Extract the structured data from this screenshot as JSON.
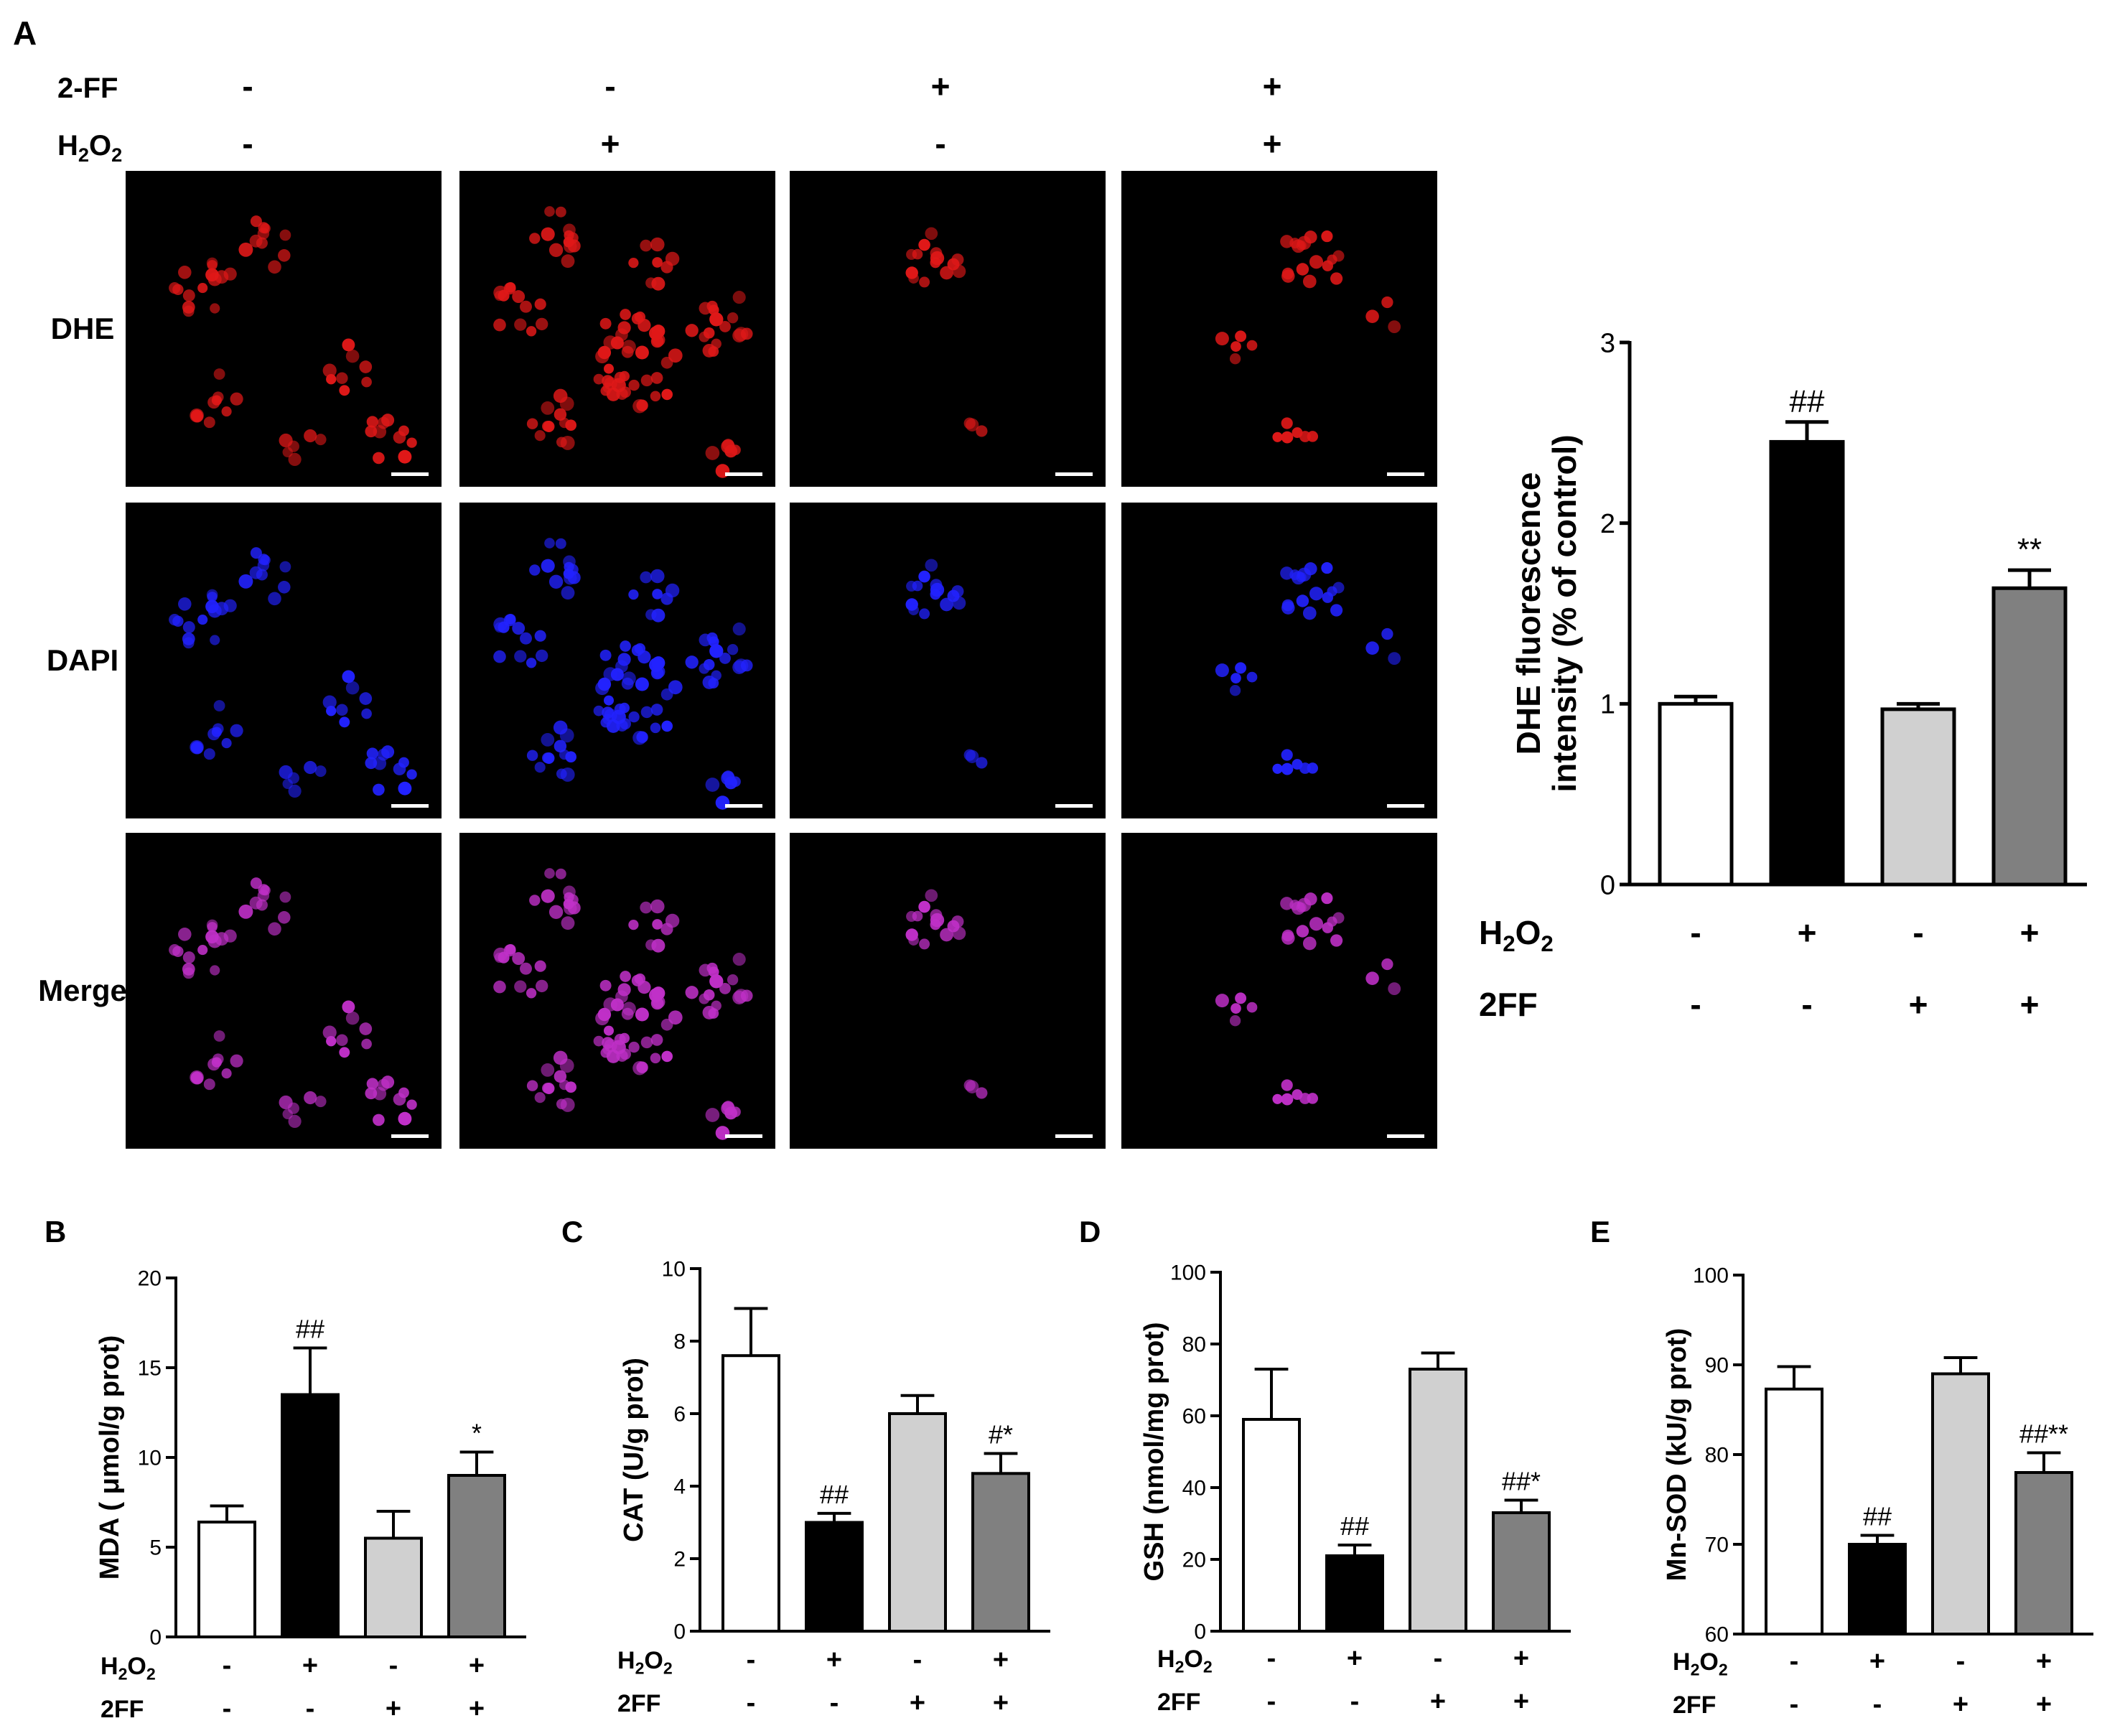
{
  "panel_a": {
    "letter": "A",
    "row_labels": [
      "DHE",
      "DAPI",
      "Merge"
    ],
    "treatment_rows": [
      {
        "label": "2-FF",
        "signs": [
          "-",
          "-",
          "+",
          "+"
        ]
      },
      {
        "label_main": "H",
        "label_sub": "2",
        "label_mid": "O",
        "label_sub2": "2",
        "signs": [
          "-",
          "+",
          "-",
          "+"
        ]
      }
    ],
    "colors": {
      "dhe": "#e01818",
      "dapi": "#2222ff",
      "merge": "#c030c8",
      "background": "#000000",
      "scale_bar": "#ffffff"
    }
  },
  "colors": {
    "bar_fills": [
      "#ffffff",
      "#000000",
      "#d0d0d0",
      "#808080"
    ],
    "axis": "#000000"
  },
  "chart_data": [
    {
      "type": "bar",
      "panel": "A",
      "letter": "",
      "ylabel_line1": "DHE fluorescence",
      "ylabel_line2": "intensity (% of control)",
      "ylim": [
        0,
        3
      ],
      "yticks": [
        0,
        1,
        2,
        3
      ],
      "values": [
        1.0,
        2.45,
        0.97,
        1.64
      ],
      "errors": [
        0.04,
        0.11,
        0.03,
        0.1
      ],
      "annotations": [
        "",
        "##",
        "",
        "**"
      ],
      "conditions": [
        {
          "label_main": "H",
          "label_sub": "2",
          "label_mid": "O",
          "label_sub2": "2",
          "signs": [
            "-",
            "+",
            "-",
            "+"
          ]
        },
        {
          "label": "2FF",
          "signs": [
            "-",
            "-",
            "+",
            "+"
          ]
        }
      ]
    },
    {
      "type": "bar",
      "panel": "B",
      "letter": "B",
      "ylabel": "MDA ( μmol/g prot)",
      "ylim": [
        0,
        20
      ],
      "yticks": [
        0,
        5,
        10,
        15,
        20
      ],
      "values": [
        6.4,
        13.5,
        5.5,
        9.0
      ],
      "errors": [
        0.9,
        2.6,
        1.5,
        1.3
      ],
      "annotations": [
        "",
        "##",
        "",
        "*"
      ],
      "conditions": [
        {
          "label_main": "H",
          "label_sub": "2",
          "label_mid": "O",
          "label_sub2": "2",
          "signs": [
            "-",
            "+",
            "-",
            "+"
          ]
        },
        {
          "label": "2FF",
          "signs": [
            "-",
            "-",
            "+",
            "+"
          ]
        }
      ]
    },
    {
      "type": "bar",
      "panel": "C",
      "letter": "C",
      "ylabel": "CAT (U/g prot)",
      "ylim": [
        0,
        10
      ],
      "yticks": [
        0,
        2,
        4,
        6,
        8,
        10
      ],
      "values": [
        7.6,
        3.0,
        6.0,
        4.35
      ],
      "errors": [
        1.3,
        0.25,
        0.5,
        0.55
      ],
      "annotations": [
        "",
        "##",
        "",
        "#*"
      ],
      "conditions": [
        {
          "label_main": "H",
          "label_sub": "2",
          "label_mid": "O",
          "label_sub2": "2",
          "signs": [
            "-",
            "+",
            "-",
            "+"
          ]
        },
        {
          "label": "2FF",
          "signs": [
            "-",
            "-",
            "+",
            "+"
          ]
        }
      ]
    },
    {
      "type": "bar",
      "panel": "D",
      "letter": "D",
      "ylabel": "GSH (nmol/mg prot)",
      "ylim": [
        0,
        100
      ],
      "yticks": [
        0,
        20,
        40,
        60,
        80,
        100
      ],
      "values": [
        59,
        21,
        73,
        33
      ],
      "errors": [
        14,
        3,
        4.5,
        3.5
      ],
      "annotations": [
        "",
        "##",
        "",
        "##*"
      ],
      "conditions": [
        {
          "label_main": "H",
          "label_sub": "2",
          "label_mid": "O",
          "label_sub2": "2",
          "signs": [
            "-",
            "+",
            "-",
            "+"
          ]
        },
        {
          "label": "2FF",
          "signs": [
            "-",
            "-",
            "+",
            "+"
          ]
        }
      ]
    },
    {
      "type": "bar",
      "panel": "E",
      "letter": "E",
      "ylabel": "Mn-SOD (kU/g prot)",
      "ylim": [
        60,
        100
      ],
      "yticks": [
        60,
        70,
        80,
        90,
        100
      ],
      "values": [
        87.3,
        70.0,
        89.0,
        78.0
      ],
      "errors": [
        2.5,
        1.0,
        1.8,
        2.2
      ],
      "annotations": [
        "",
        "##",
        "",
        "##**"
      ],
      "conditions": [
        {
          "label_main": "H",
          "label_sub": "2",
          "label_mid": "O",
          "label_sub2": "2",
          "signs": [
            "-",
            "+",
            "-",
            "+"
          ]
        },
        {
          "label": "2FF",
          "signs": [
            "-",
            "-",
            "+",
            "+"
          ]
        }
      ]
    }
  ]
}
